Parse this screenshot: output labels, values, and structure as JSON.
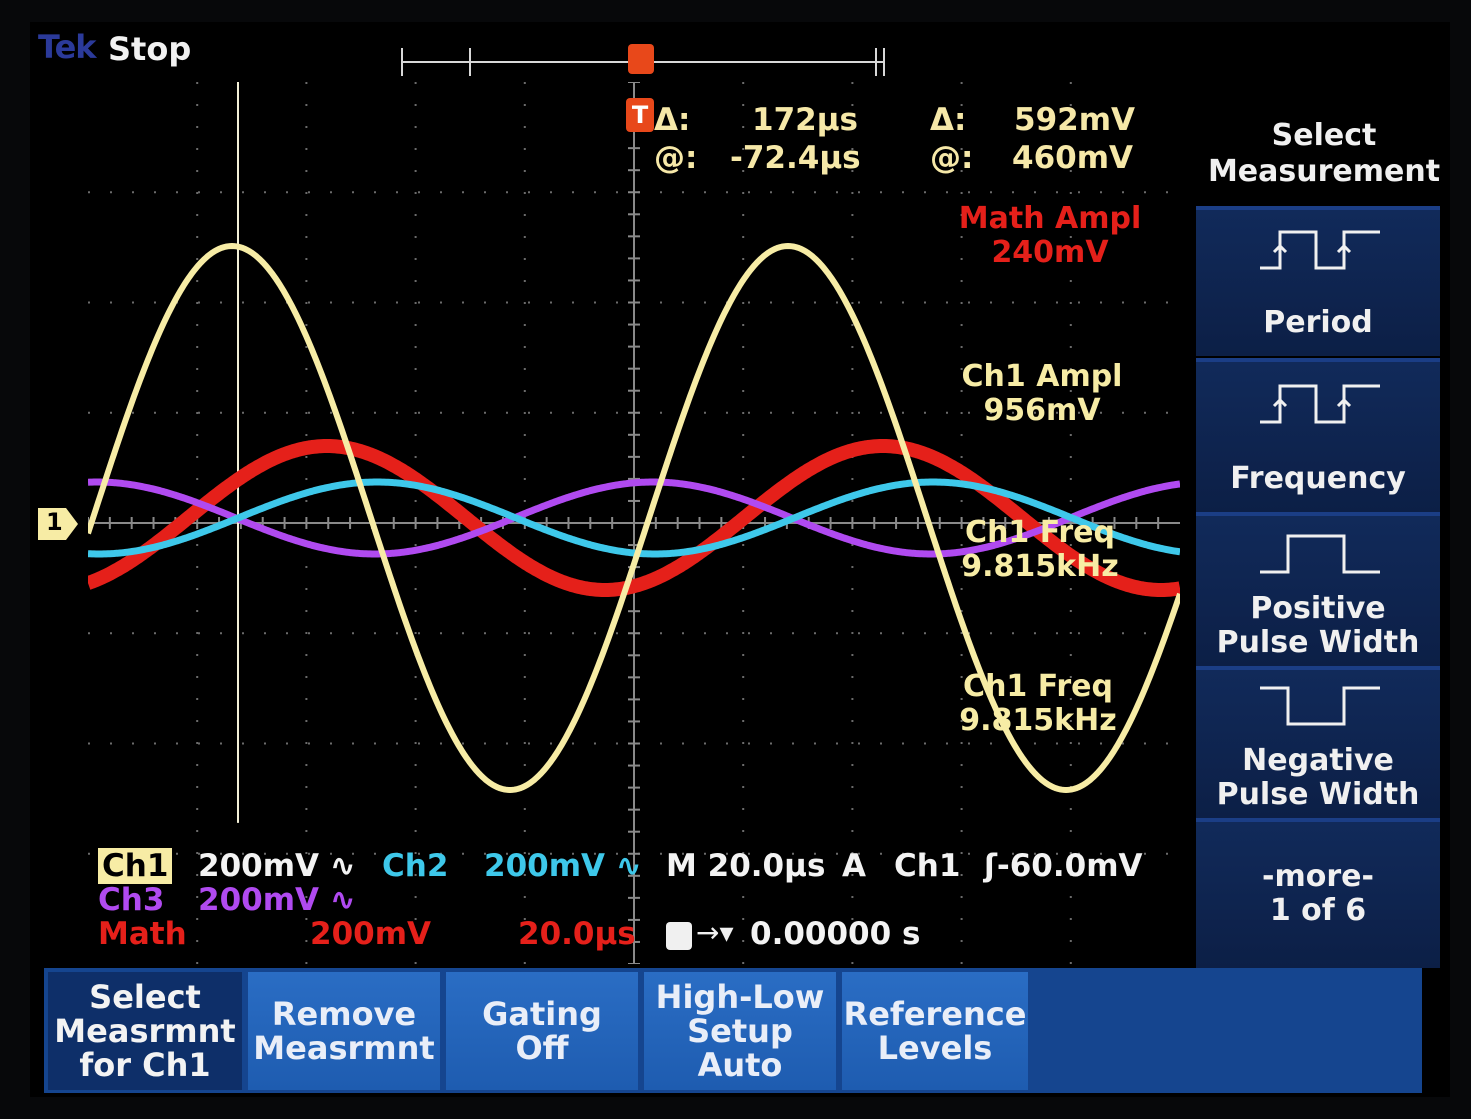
{
  "header": {
    "brand": "Tek",
    "run_state": "Stop"
  },
  "cursor": {
    "time_delta_label": "Δ:",
    "time_delta": "172μs",
    "time_at_label": "@:",
    "time_at": "-72.4μs",
    "volt_delta_label": "Δ:",
    "volt_delta": "592mV",
    "volt_at_label": "@:",
    "volt_at": "460mV"
  },
  "measurements": [
    {
      "label": "Math Ampl",
      "value": "240mV",
      "color": "#e5201a"
    },
    {
      "label": "Ch1 Ampl",
      "value": "956mV",
      "color": "#f7eca5"
    },
    {
      "label": "Ch1 Freq",
      "value": "9.815kHz",
      "color": "#f7eca5"
    },
    {
      "label": "Ch1 Freq",
      "value": "9.815kHz",
      "color": "#f7eca5"
    }
  ],
  "channel_marker": "1",
  "trigger_marker": "T",
  "side_menu": {
    "title_line1": "Select",
    "title_line2": "Measurement",
    "items": [
      {
        "line1": "Period",
        "line2": "",
        "icon": "period-pulse-icon"
      },
      {
        "line1": "Frequency",
        "line2": "",
        "icon": "frequency-pulse-icon"
      },
      {
        "line1": "Positive",
        "line2": "Pulse Width",
        "icon": "positive-pulse-icon"
      },
      {
        "line1": "Negative",
        "line2": "Pulse Width",
        "icon": "negative-pulse-icon"
      },
      {
        "line1": "-more-",
        "line2": "1 of 6",
        "icon": ""
      }
    ]
  },
  "bottom_menu": [
    {
      "line1": "Select",
      "line2": "Measrmnt",
      "line3": "for Ch1"
    },
    {
      "line1": "Remove",
      "line2": "Measrmnt",
      "line3": ""
    },
    {
      "line1": "Gating",
      "line2": "Off",
      "line3": ""
    },
    {
      "line1": "High-Low",
      "line2": "Setup",
      "line3": "Auto"
    },
    {
      "line1": "Reference",
      "line2": "Levels",
      "line3": ""
    }
  ],
  "status": {
    "ch1_label": "Ch1",
    "ch1_scale": "200mV ∿",
    "ch2_label": "Ch2",
    "ch2_scale": "200mV ∿",
    "timebase": "M 20.0μs",
    "acq_mode": "A",
    "trig_source": "Ch1",
    "trig_level": "ʃ-60.0mV",
    "ch3_label": "Ch3",
    "ch3_scale": "200mV ∿",
    "math_label": "Math",
    "math_scale": "200mV",
    "math_time": "20.0μs",
    "trig_pos": "0.00000 s"
  },
  "colors": {
    "ch1": "#f7eca5",
    "ch2": "#3ec8ea",
    "ch3": "#b04af0",
    "math": "#e5201a",
    "grid": "#6b6b6b"
  }
}
